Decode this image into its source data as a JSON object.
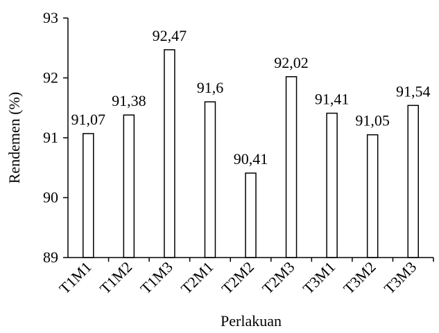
{
  "chart_data": {
    "type": "bar",
    "title": "",
    "xlabel": "Perlakuan",
    "ylabel": "Rendemen (%)",
    "ylim": [
      89,
      93
    ],
    "yticks": [
      "89",
      "90",
      "91",
      "92",
      "93"
    ],
    "grid": false,
    "legend": "none",
    "categories": [
      "T1M1",
      "T1M2",
      "T1M3",
      "T2M1",
      "T2M2",
      "T2M3",
      "T3M1",
      "T3M2",
      "T3M3"
    ],
    "values": [
      91.07,
      91.38,
      92.47,
      91.6,
      90.41,
      92.02,
      91.41,
      91.05,
      91.54
    ],
    "data_labels": [
      "91,07",
      "91,38",
      "92,47",
      "91,6",
      "90,41",
      "92,02",
      "91,41",
      "91,05",
      "91,54"
    ],
    "bar_fill": "#ffffff",
    "bar_stroke": "#000000"
  }
}
